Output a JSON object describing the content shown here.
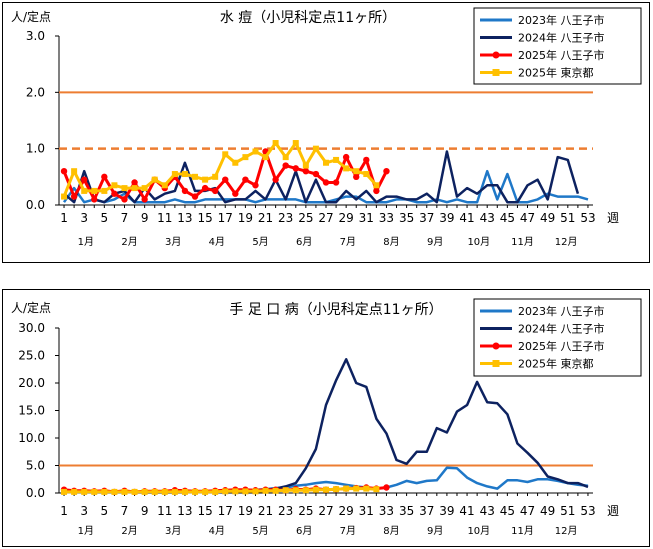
{
  "colors": {
    "s2023": "#1f78c8",
    "s2024": "#0d2260",
    "s2025h": "#ff0000",
    "s2025t": "#ffc000",
    "alert": "#ed7d31"
  },
  "chart_data": [
    {
      "type": "line",
      "title": "水 痘（小児科定点11ヶ所）",
      "ylabel": "人/定点",
      "xlabel": "週",
      "ylim": [
        0,
        3.0
      ],
      "yticks": [
        "0.0",
        "1.0",
        "2.0",
        "3.0"
      ],
      "xticks": [
        "1",
        "3",
        "5",
        "7",
        "9",
        "11",
        "13",
        "15",
        "17",
        "19",
        "21",
        "23",
        "25",
        "27",
        "29",
        "31",
        "33",
        "35",
        "37",
        "39",
        "41",
        "43",
        "45",
        "47",
        "49",
        "51",
        "53"
      ],
      "months": [
        "1月",
        "2月",
        "3月",
        "4月",
        "5月",
        "6月",
        "7月",
        "8月",
        "9月",
        "10月",
        "11月",
        "12月"
      ],
      "legend": [
        "2023年 八王子市",
        "2024年 八王子市",
        "2025年 八王子市",
        "2025年 東京都"
      ],
      "reference_lines": [
        {
          "value": 2.0,
          "style": "solid"
        },
        {
          "value": 1.0,
          "style": "dashed"
        }
      ],
      "series": [
        {
          "name": "2023年 八王子市",
          "values": [
            0.05,
            0.3,
            0.05,
            0.1,
            0.05,
            0.1,
            0.2,
            0.05,
            0.05,
            0.05,
            0.05,
            0.1,
            0.05,
            0.05,
            0.1,
            0.1,
            0.1,
            0.1,
            0.1,
            0.05,
            0.1,
            0.1,
            0.1,
            0.1,
            0.05,
            0.05,
            0.05,
            0.1,
            0.15,
            0.15,
            0.05,
            0.05,
            0.05,
            0.1,
            0.1,
            0.05,
            0.05,
            0.1,
            0.05,
            0.1,
            0.05,
            0.05,
            0.6,
            0.1,
            0.55,
            0.05,
            0.05,
            0.1,
            0.2,
            0.15,
            0.15,
            0.15,
            0.1
          ]
        },
        {
          "name": "2024年 八王子市",
          "values": [
            0.2,
            0.05,
            0.6,
            0.1,
            0.05,
            0.2,
            0.25,
            0.05,
            0.3,
            0.1,
            0.2,
            0.25,
            0.75,
            0.25,
            0.25,
            0.3,
            0.05,
            0.1,
            0.1,
            0.25,
            0.1,
            0.45,
            0.1,
            0.6,
            0.05,
            0.45,
            0.05,
            0.05,
            0.25,
            0.1,
            0.25,
            0.05,
            0.15,
            0.15,
            0.1,
            0.1,
            0.2,
            0.05,
            0.95,
            0.15,
            0.3,
            0.2,
            0.35,
            0.35,
            0.05,
            0.05,
            0.35,
            0.45,
            0.1,
            0.85,
            0.8,
            0.2,
            null
          ]
        },
        {
          "name": "2025年 八王子市",
          "values": [
            0.6,
            0.15,
            0.45,
            0.1,
            0.5,
            0.2,
            0.1,
            0.4,
            0.1,
            0.45,
            0.3,
            0.5,
            0.25,
            0.15,
            0.3,
            0.25,
            0.45,
            0.2,
            0.45,
            0.35,
            0.95,
            0.45,
            0.7,
            0.65,
            0.6,
            0.55,
            0.4,
            0.4,
            0.85,
            0.5,
            0.8,
            0.25,
            0.6
          ]
        },
        {
          "name": "2025年 東京都",
          "values": [
            0.15,
            0.6,
            0.25,
            0.25,
            0.25,
            0.35,
            0.3,
            0.3,
            0.3,
            0.45,
            0.35,
            0.55,
            0.55,
            0.5,
            0.45,
            0.5,
            0.9,
            0.75,
            0.85,
            0.95,
            0.85,
            1.1,
            0.85,
            1.1,
            0.7,
            1.0,
            0.75,
            0.8,
            0.65,
            0.6,
            0.55,
            0.35
          ]
        }
      ]
    },
    {
      "type": "line",
      "title": "手 足 口 病（小児科定点11ヶ所）",
      "ylabel": "人/定点",
      "xlabel": "週",
      "ylim": [
        0,
        30.0
      ],
      "yticks": [
        "0.0",
        "5.0",
        "10.0",
        "15.0",
        "20.0",
        "25.0",
        "30.0"
      ],
      "xticks": [
        "1",
        "3",
        "5",
        "7",
        "9",
        "11",
        "13",
        "15",
        "17",
        "19",
        "21",
        "23",
        "25",
        "27",
        "29",
        "31",
        "33",
        "35",
        "37",
        "39",
        "41",
        "43",
        "45",
        "47",
        "49",
        "51",
        "53"
      ],
      "months": [
        "1月",
        "2月",
        "3月",
        "4月",
        "5月",
        "6月",
        "7月",
        "8月",
        "9月",
        "10月",
        "11月",
        "12月"
      ],
      "legend": [
        "2023年 八王子市",
        "2024年 八王子市",
        "2025年 八王子市",
        "2025年 東京都"
      ],
      "reference_lines": [
        {
          "value": 5.0,
          "style": "solid"
        }
      ],
      "series": [
        {
          "name": "2023年 八王子市",
          "values": [
            0.2,
            0.1,
            0.1,
            0.1,
            0.1,
            0.1,
            0.1,
            0.2,
            0.1,
            0.1,
            0.1,
            0.1,
            0.2,
            0.1,
            0.2,
            0.3,
            0.3,
            0.4,
            0.5,
            0.6,
            0.7,
            0.9,
            1.0,
            1.3,
            1.5,
            1.8,
            2.0,
            1.8,
            1.5,
            1.2,
            1.0,
            0.8,
            1.0,
            1.5,
            2.2,
            1.8,
            2.2,
            2.3,
            4.6,
            4.5,
            2.8,
            1.8,
            1.2,
            0.8,
            2.3,
            2.3,
            2.0,
            2.5,
            2.5,
            2.2,
            1.8,
            1.5,
            1.3
          ]
        },
        {
          "name": "2024年 八王子市",
          "values": [
            0.3,
            0.2,
            0.2,
            0.2,
            0.1,
            0.2,
            0.2,
            0.1,
            0.1,
            0.1,
            0.1,
            0.1,
            0.1,
            0.2,
            0.2,
            0.2,
            0.2,
            0.3,
            0.4,
            0.5,
            0.6,
            0.8,
            1.2,
            1.8,
            4.5,
            8.0,
            16.0,
            20.5,
            24.3,
            20.0,
            19.3,
            13.5,
            10.8,
            6.0,
            5.3,
            7.5,
            7.5,
            11.8,
            11.0,
            14.8,
            16.0,
            20.2,
            16.5,
            16.3,
            14.3,
            9.0,
            7.3,
            5.5,
            3.0,
            2.5,
            1.8,
            1.8,
            1.1
          ]
        },
        {
          "name": "2025年 八王子市",
          "values": [
            0.6,
            0.4,
            0.4,
            0.3,
            0.4,
            0.2,
            0.4,
            0.2,
            0.3,
            0.3,
            0.3,
            0.5,
            0.4,
            0.3,
            0.3,
            0.4,
            0.5,
            0.6,
            0.6,
            0.5,
            0.6,
            0.6,
            0.5,
            0.7,
            0.6,
            0.8,
            0.6,
            0.7,
            0.8,
            0.9,
            1.0,
            0.8,
            1.0
          ]
        },
        {
          "name": "2025年 東京都",
          "values": [
            0.2,
            0.2,
            0.2,
            0.2,
            0.2,
            0.2,
            0.2,
            0.2,
            0.2,
            0.2,
            0.2,
            0.2,
            0.2,
            0.2,
            0.2,
            0.2,
            0.3,
            0.3,
            0.3,
            0.3,
            0.4,
            0.4,
            0.5,
            0.5,
            0.5,
            0.6,
            0.6,
            0.7,
            0.8,
            0.8,
            0.8,
            0.7
          ]
        }
      ]
    }
  ]
}
